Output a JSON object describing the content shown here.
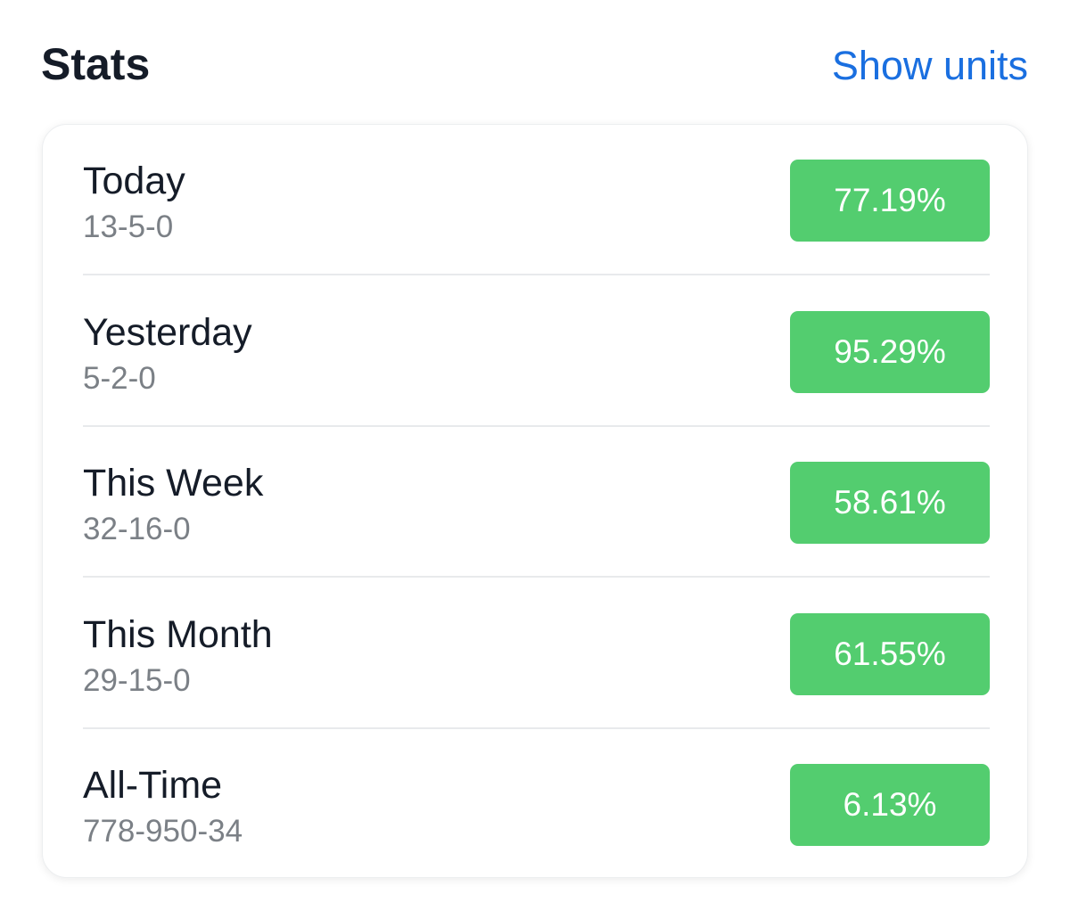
{
  "header": {
    "title": "Stats",
    "action": "Show units"
  },
  "rows": [
    {
      "label": "Today",
      "record": "13-5-0",
      "percent": "77.19%"
    },
    {
      "label": "Yesterday",
      "record": "5-2-0",
      "percent": "95.29%"
    },
    {
      "label": "This Week",
      "record": "32-16-0",
      "percent": "58.61%"
    },
    {
      "label": "This Month",
      "record": "29-15-0",
      "percent": "61.55%"
    },
    {
      "label": "All-Time",
      "record": "778-950-34",
      "percent": "6.13%"
    }
  ]
}
